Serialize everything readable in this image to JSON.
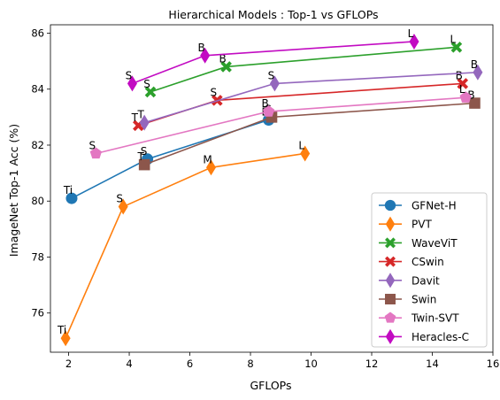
{
  "chart_data": {
    "type": "line",
    "title": "Hierarchical Models : Top-1 vs GFLOPs",
    "xlabel": "GFLOPs",
    "ylabel": "ImageNet Top-1 Acc (%)",
    "xlim": [
      1.4,
      16.0
    ],
    "ylim": [
      74.6,
      86.3
    ],
    "xticks": [
      2,
      4,
      6,
      8,
      10,
      12,
      14,
      16
    ],
    "yticks": [
      76,
      78,
      80,
      82,
      84,
      86
    ],
    "grid": false,
    "legend_position": "lower right",
    "series": [
      {
        "name": "GFNet-H",
        "color": "#1f77b4",
        "marker": "circle",
        "points": [
          {
            "x": 2.1,
            "y": 80.1,
            "label": "Ti"
          },
          {
            "x": 4.6,
            "y": 81.5,
            "label": "S"
          },
          {
            "x": 8.6,
            "y": 82.9,
            "label": "B"
          }
        ]
      },
      {
        "name": "PVT",
        "color": "#ff7f0e",
        "marker": "thin_diamond",
        "points": [
          {
            "x": 1.9,
            "y": 75.1,
            "label": "Ti"
          },
          {
            "x": 3.8,
            "y": 79.8,
            "label": "S"
          },
          {
            "x": 6.7,
            "y": 81.2,
            "label": "M"
          },
          {
            "x": 9.8,
            "y": 81.7,
            "label": "L"
          }
        ]
      },
      {
        "name": "WaveViT",
        "color": "#2ca02c",
        "marker": "x",
        "points": [
          {
            "x": 4.7,
            "y": 83.9,
            "label": "S"
          },
          {
            "x": 7.2,
            "y": 84.8,
            "label": "B"
          },
          {
            "x": 14.8,
            "y": 85.5,
            "label": "L"
          }
        ]
      },
      {
        "name": "CSwin",
        "color": "#d62728",
        "marker": "x",
        "points": [
          {
            "x": 4.3,
            "y": 82.7,
            "label": "T"
          },
          {
            "x": 6.9,
            "y": 83.6,
            "label": "S"
          },
          {
            "x": 15.0,
            "y": 84.2,
            "label": "B"
          }
        ]
      },
      {
        "name": "Davit",
        "color": "#9467bd",
        "marker": "thin_diamond",
        "points": [
          {
            "x": 4.5,
            "y": 82.8,
            "label": "T"
          },
          {
            "x": 8.8,
            "y": 84.2,
            "label": "S"
          },
          {
            "x": 15.5,
            "y": 84.6,
            "label": "B"
          }
        ]
      },
      {
        "name": "Swin",
        "color": "#8c564b",
        "marker": "square",
        "points": [
          {
            "x": 4.5,
            "y": 81.3,
            "label": "T"
          },
          {
            "x": 8.7,
            "y": 83.0,
            "label": "S"
          },
          {
            "x": 15.4,
            "y": 83.5,
            "label": "B"
          }
        ]
      },
      {
        "name": "Twin-SVT",
        "color": "#e377c2",
        "marker": "pentagon",
        "points": [
          {
            "x": 2.9,
            "y": 81.7,
            "label": "S"
          },
          {
            "x": 8.6,
            "y": 83.2,
            "label": "B"
          },
          {
            "x": 15.1,
            "y": 83.7,
            "label": "L"
          }
        ]
      },
      {
        "name": "Heracles-C",
        "color": "#c20bc2",
        "marker": "thin_diamond",
        "points": [
          {
            "x": 4.1,
            "y": 84.2,
            "label": "S"
          },
          {
            "x": 6.5,
            "y": 85.2,
            "label": "B"
          },
          {
            "x": 13.4,
            "y": 85.7,
            "label": "L"
          }
        ]
      }
    ]
  }
}
